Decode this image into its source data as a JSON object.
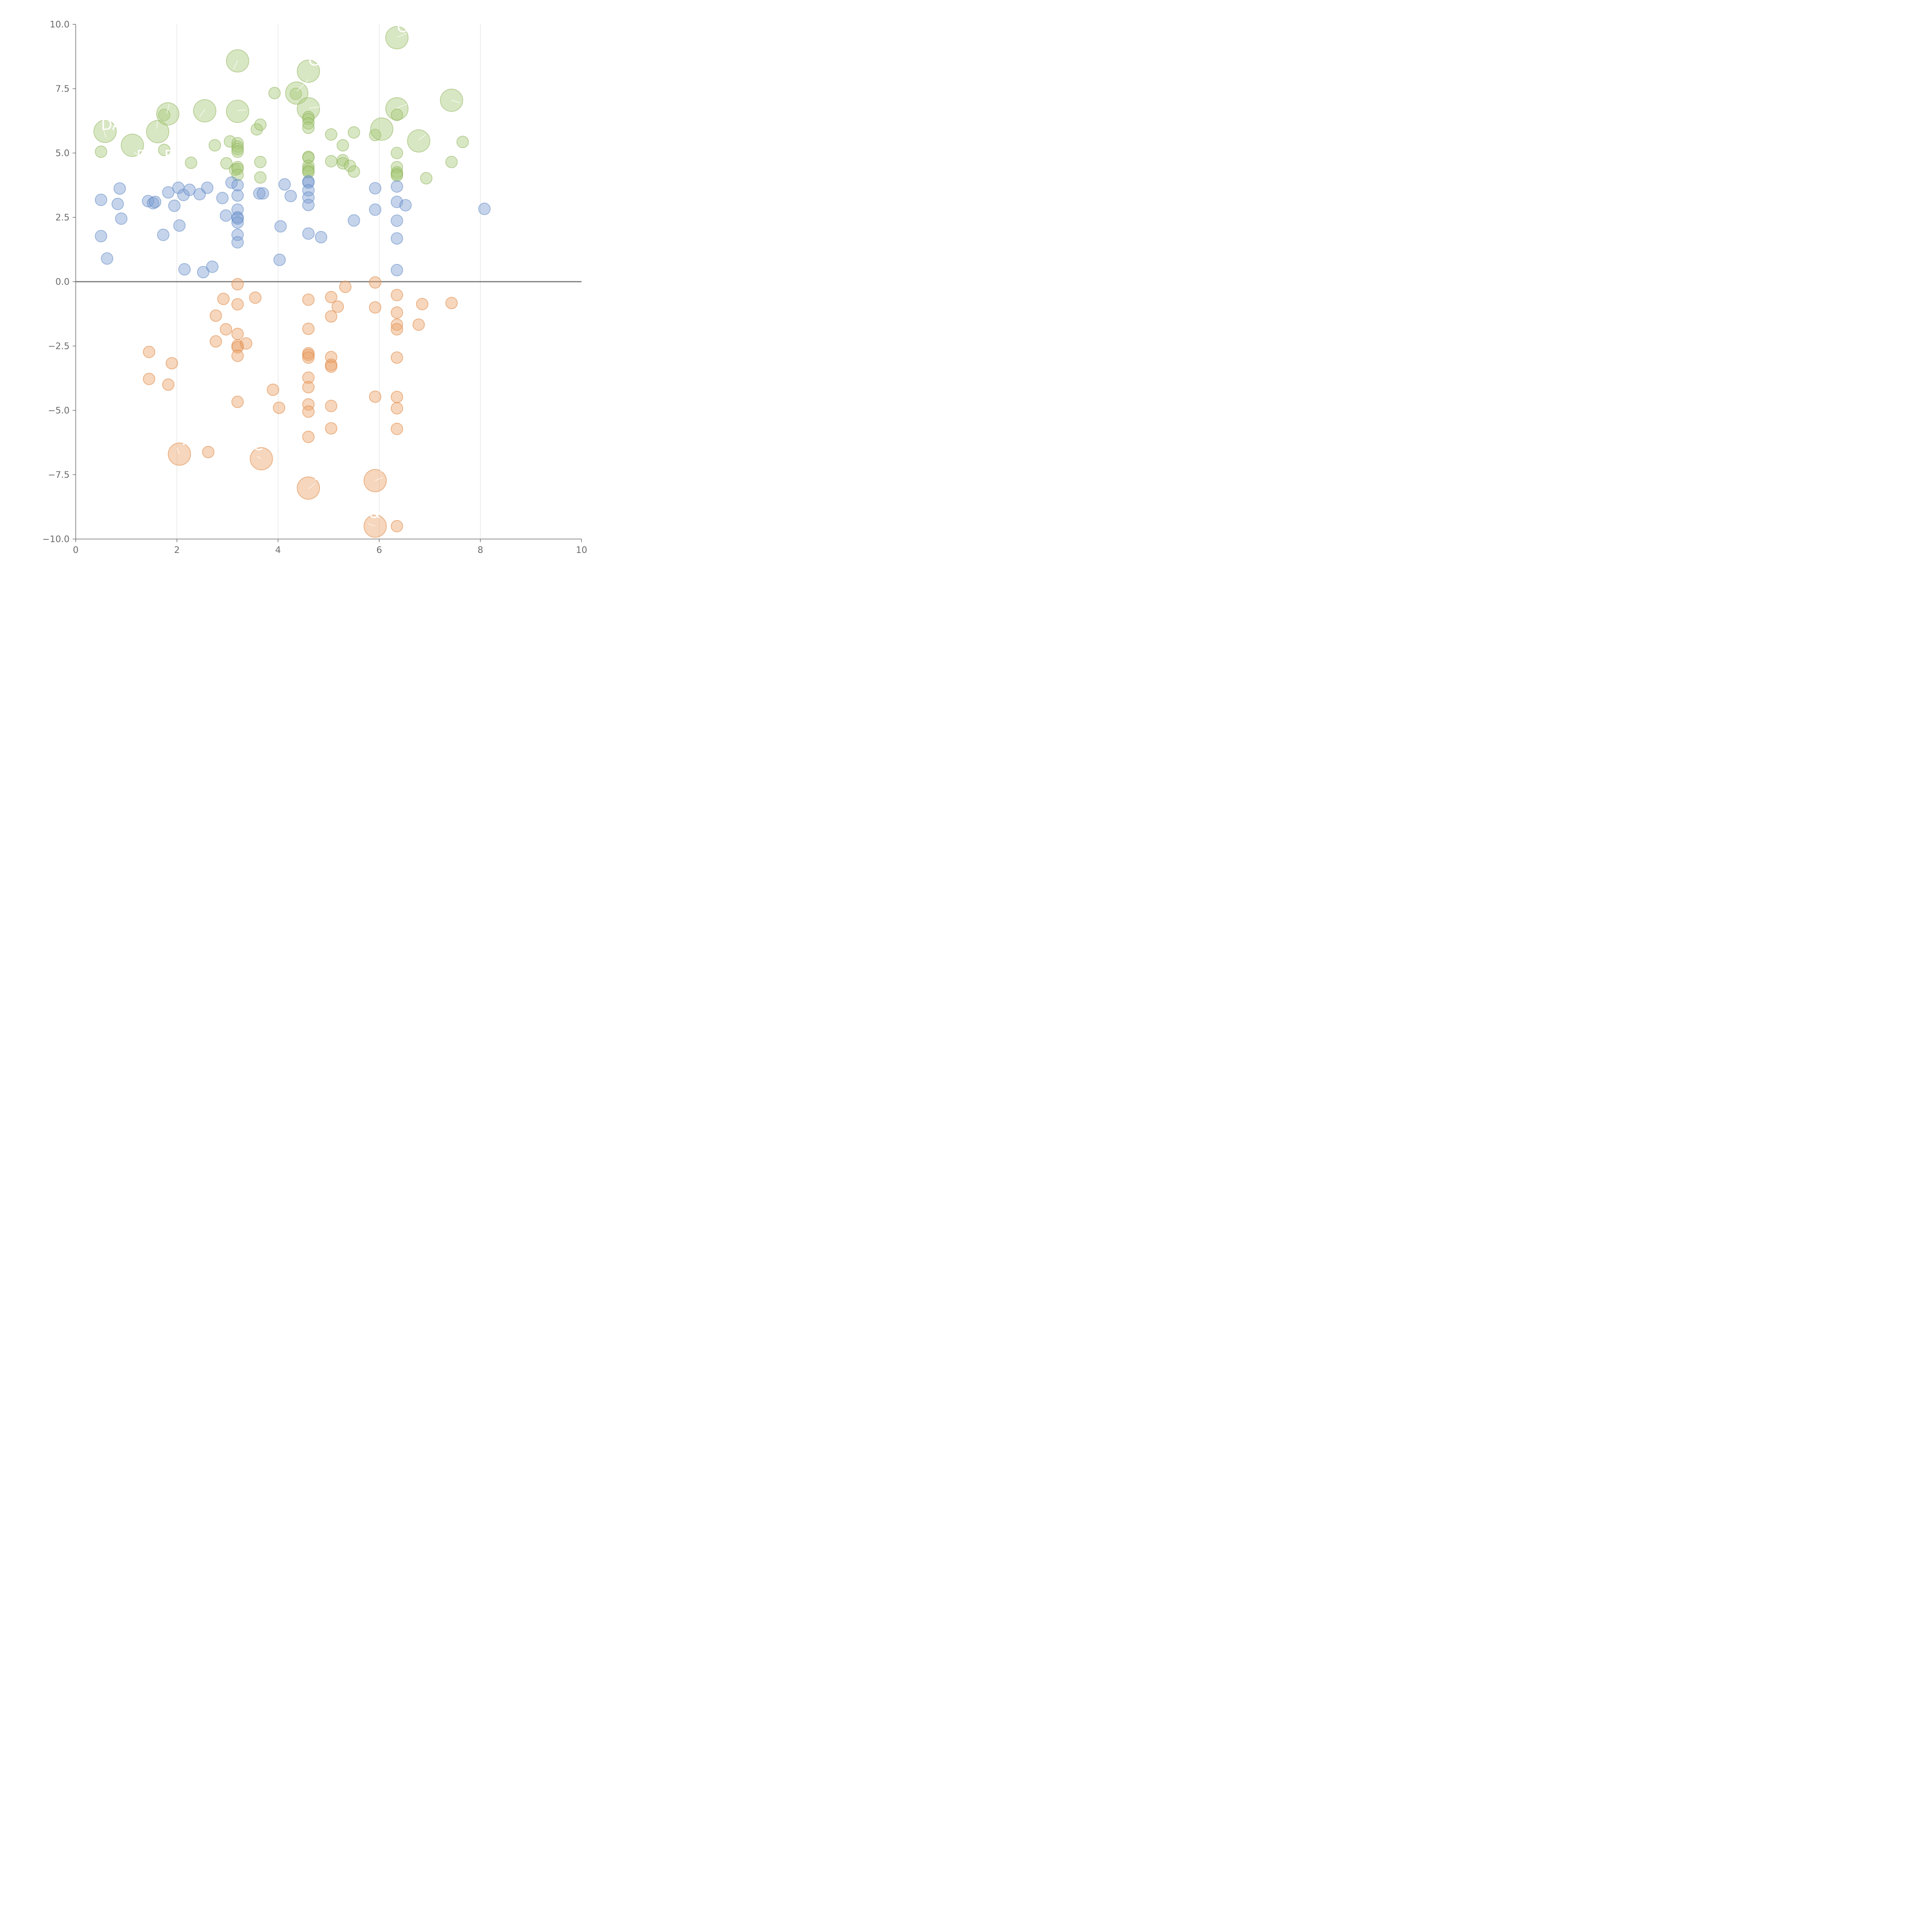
{
  "chart_data": {
    "type": "scatter",
    "title": "",
    "xlabel": "",
    "ylabel": "",
    "xlim": [
      0,
      10
    ],
    "ylim": [
      -10,
      10
    ],
    "grid": "vertical",
    "x_ticks": [
      "0",
      "2",
      "4",
      "6",
      "8",
      "10"
    ],
    "y_ticks": [
      "10.0",
      "7.5",
      "5.0",
      "2.5",
      "0.0",
      "−2.5",
      "−5.0",
      "−7.5",
      "−10.0"
    ],
    "colors": {
      "green": "#a9c97a",
      "green_edge": "#8fb25c",
      "blue": "#7ea0d2",
      "blue_edge": "#5f86c3",
      "orange": "#eca36a",
      "orange_edge": "#dc8540",
      "axis": "#6b6b6b",
      "grid": "#d9d9d9"
    },
    "series": [
      {
        "name": "green",
        "points": [
          [
            0.5,
            5.05,
            1
          ],
          [
            0.58,
            5.84,
            3
          ],
          [
            1.12,
            5.3,
            3
          ],
          [
            1.62,
            5.83,
            3
          ],
          [
            1.75,
            5.12,
            1
          ],
          [
            1.75,
            6.48,
            1
          ],
          [
            1.82,
            6.52,
            3
          ],
          [
            2.28,
            4.62,
            1
          ],
          [
            2.55,
            6.64,
            3
          ],
          [
            2.75,
            5.3,
            1
          ],
          [
            2.98,
            4.6,
            1
          ],
          [
            3.05,
            5.45,
            1
          ],
          [
            3.15,
            4.35,
            1
          ],
          [
            3.2,
            8.58,
            3
          ],
          [
            3.2,
            6.62,
            3
          ],
          [
            3.2,
            5.38,
            1
          ],
          [
            3.2,
            5.25,
            1
          ],
          [
            3.2,
            5.15,
            1
          ],
          [
            3.2,
            5.05,
            1
          ],
          [
            3.2,
            4.45,
            1
          ],
          [
            3.2,
            4.38,
            1
          ],
          [
            3.2,
            4.15,
            1
          ],
          [
            3.58,
            5.92,
            1
          ],
          [
            3.65,
            6.1,
            1
          ],
          [
            3.65,
            4.65,
            1
          ],
          [
            3.65,
            4.05,
            1
          ],
          [
            3.93,
            7.33,
            1
          ],
          [
            4.35,
            7.3,
            1
          ],
          [
            4.37,
            7.33,
            3
          ],
          [
            4.6,
            8.18,
            3
          ],
          [
            4.6,
            6.72,
            3
          ],
          [
            4.6,
            6.4,
            1
          ],
          [
            4.6,
            6.32,
            1
          ],
          [
            4.6,
            6.15,
            1
          ],
          [
            4.6,
            5.98,
            1
          ],
          [
            4.6,
            4.85,
            1
          ],
          [
            4.6,
            4.82,
            1
          ],
          [
            4.6,
            4.5,
            1
          ],
          [
            4.6,
            4.38,
            1
          ],
          [
            4.6,
            4.3,
            1
          ],
          [
            4.6,
            4.25,
            1
          ],
          [
            5.05,
            5.72,
            1
          ],
          [
            5.05,
            4.68,
            1
          ],
          [
            5.28,
            5.3,
            1
          ],
          [
            5.28,
            4.72,
            1
          ],
          [
            5.28,
            4.6,
            1
          ],
          [
            5.42,
            4.5,
            1
          ],
          [
            5.5,
            5.8,
            1
          ],
          [
            5.5,
            4.28,
            1
          ],
          [
            5.92,
            5.7,
            1
          ],
          [
            6.05,
            5.93,
            3
          ],
          [
            6.35,
            9.48,
            3
          ],
          [
            6.35,
            6.72,
            3
          ],
          [
            6.35,
            6.48,
            1
          ],
          [
            6.35,
            5.0,
            1
          ],
          [
            6.35,
            4.45,
            1
          ],
          [
            6.35,
            4.25,
            1
          ],
          [
            6.35,
            4.18,
            1
          ],
          [
            6.35,
            4.12,
            1
          ],
          [
            6.78,
            5.47,
            3
          ],
          [
            6.93,
            4.02,
            1
          ],
          [
            7.43,
            7.05,
            3
          ],
          [
            7.43,
            4.65,
            1
          ],
          [
            7.65,
            5.43,
            1
          ]
        ]
      },
      {
        "name": "blue",
        "points": [
          [
            0.5,
            3.18,
            1
          ],
          [
            0.5,
            1.77,
            1
          ],
          [
            0.62,
            0.9,
            1
          ],
          [
            0.83,
            3.02,
            1
          ],
          [
            0.87,
            3.62,
            1
          ],
          [
            0.9,
            2.45,
            1
          ],
          [
            1.43,
            3.13,
            1
          ],
          [
            1.53,
            3.05,
            1
          ],
          [
            1.57,
            3.1,
            1
          ],
          [
            1.73,
            1.82,
            1
          ],
          [
            1.83,
            3.47,
            1
          ],
          [
            1.95,
            2.95,
            1
          ],
          [
            2.03,
            3.65,
            1
          ],
          [
            2.05,
            2.18,
            1
          ],
          [
            2.13,
            3.37,
            1
          ],
          [
            2.15,
            0.48,
            1
          ],
          [
            2.25,
            3.57,
            1
          ],
          [
            2.45,
            3.4,
            1
          ],
          [
            2.52,
            0.37,
            1
          ],
          [
            2.6,
            3.65,
            1
          ],
          [
            2.7,
            0.58,
            1
          ],
          [
            2.9,
            3.25,
            1
          ],
          [
            2.97,
            2.57,
            1
          ],
          [
            3.08,
            3.85,
            1
          ],
          [
            3.2,
            3.75,
            1
          ],
          [
            3.2,
            3.35,
            1
          ],
          [
            3.2,
            2.8,
            1
          ],
          [
            3.2,
            2.5,
            1
          ],
          [
            3.2,
            2.45,
            1
          ],
          [
            3.2,
            2.3,
            1
          ],
          [
            3.2,
            1.82,
            1
          ],
          [
            3.2,
            1.53,
            1
          ],
          [
            3.63,
            3.43,
            1
          ],
          [
            3.7,
            3.43,
            1
          ],
          [
            4.03,
            0.85,
            1
          ],
          [
            4.05,
            2.15,
            1
          ],
          [
            4.13,
            3.78,
            1
          ],
          [
            4.25,
            3.33,
            1
          ],
          [
            4.6,
            3.9,
            1
          ],
          [
            4.6,
            3.85,
            1
          ],
          [
            4.6,
            3.55,
            1
          ],
          [
            4.6,
            3.27,
            1
          ],
          [
            4.6,
            2.98,
            1
          ],
          [
            4.6,
            1.87,
            1
          ],
          [
            4.85,
            1.73,
            1
          ],
          [
            5.5,
            2.38,
            1
          ],
          [
            5.92,
            3.63,
            1
          ],
          [
            5.92,
            2.8,
            1
          ],
          [
            6.35,
            3.7,
            1
          ],
          [
            6.35,
            3.1,
            1
          ],
          [
            6.35,
            2.37,
            1
          ],
          [
            6.35,
            1.68,
            1
          ],
          [
            6.35,
            0.45,
            1
          ],
          [
            6.52,
            2.97,
            1
          ],
          [
            8.08,
            2.83,
            1
          ]
        ]
      },
      {
        "name": "orange",
        "points": [
          [
            1.45,
            -2.73,
            1
          ],
          [
            1.45,
            -3.78,
            1
          ],
          [
            1.83,
            -4.0,
            1
          ],
          [
            1.9,
            -3.17,
            1
          ],
          [
            2.05,
            -6.7,
            3
          ],
          [
            2.62,
            -6.62,
            1
          ],
          [
            2.77,
            -1.32,
            1
          ],
          [
            2.77,
            -2.32,
            1
          ],
          [
            2.92,
            -0.67,
            1
          ],
          [
            2.97,
            -1.85,
            1
          ],
          [
            3.2,
            -0.1,
            1
          ],
          [
            3.2,
            -0.88,
            1
          ],
          [
            3.2,
            -2.03,
            1
          ],
          [
            3.2,
            -2.48,
            1
          ],
          [
            3.2,
            -2.55,
            1
          ],
          [
            3.2,
            -2.88,
            1
          ],
          [
            3.2,
            -4.67,
            1
          ],
          [
            3.37,
            -2.4,
            1
          ],
          [
            3.55,
            -0.62,
            1
          ],
          [
            3.67,
            -6.88,
            3
          ],
          [
            3.9,
            -4.2,
            1
          ],
          [
            4.02,
            -4.9,
            1
          ],
          [
            4.6,
            -0.7,
            1
          ],
          [
            4.6,
            -1.83,
            1
          ],
          [
            4.6,
            -2.78,
            1
          ],
          [
            4.6,
            -2.85,
            1
          ],
          [
            4.6,
            -2.95,
            1
          ],
          [
            4.6,
            -3.73,
            1
          ],
          [
            4.6,
            -4.1,
            1
          ],
          [
            4.6,
            -4.77,
            1
          ],
          [
            4.6,
            -5.05,
            1
          ],
          [
            4.6,
            -6.03,
            1
          ],
          [
            4.6,
            -8.02,
            3
          ],
          [
            5.05,
            -0.6,
            1
          ],
          [
            5.05,
            -1.35,
            1
          ],
          [
            5.05,
            -2.93,
            1
          ],
          [
            5.05,
            -3.23,
            1
          ],
          [
            5.05,
            -3.3,
            1
          ],
          [
            5.05,
            -4.83,
            1
          ],
          [
            5.05,
            -5.7,
            1
          ],
          [
            5.18,
            -0.97,
            1
          ],
          [
            5.33,
            -0.2,
            1
          ],
          [
            5.92,
            -0.03,
            1
          ],
          [
            5.92,
            -1.0,
            1
          ],
          [
            5.92,
            -4.47,
            1
          ],
          [
            5.92,
            -7.73,
            3
          ],
          [
            5.92,
            -9.5,
            3
          ],
          [
            6.35,
            -0.52,
            1
          ],
          [
            6.35,
            -1.2,
            1
          ],
          [
            6.35,
            -1.67,
            1
          ],
          [
            6.35,
            -1.85,
            1
          ],
          [
            6.35,
            -2.95,
            1
          ],
          [
            6.35,
            -4.48,
            1
          ],
          [
            6.35,
            -4.92,
            1
          ],
          [
            6.35,
            -5.72,
            1
          ],
          [
            6.35,
            -9.5,
            1
          ],
          [
            6.78,
            -1.67,
            1
          ],
          [
            6.85,
            -0.87,
            1
          ],
          [
            7.43,
            -0.83,
            1
          ]
        ]
      }
    ],
    "annotations": [
      {
        "text": "DAR",
        "x": 0.5,
        "y": 5.9
      },
      {
        "text": "E",
        "x": 1.2,
        "y": 4.7
      },
      {
        "text": "E",
        "x": 1.75,
        "y": 4.7
      },
      {
        "text": "GM",
        "x": 4.6,
        "y": 8.4
      },
      {
        "text": "CH",
        "x": 6.35,
        "y": 9.7
      },
      {
        "text": "P",
        "x": 6.05,
        "y": 6.9
      },
      {
        "text": "T",
        "x": 2.05,
        "y": -6.35
      },
      {
        "text": "C",
        "x": 3.5,
        "y": -6.55
      },
      {
        "text": "D",
        "x": 4.7,
        "y": -7.7
      },
      {
        "text": "N",
        "x": 6.0,
        "y": -7.38
      },
      {
        "text": "&",
        "x": 5.8,
        "y": -9.18
      }
    ],
    "leader_lines": [
      [
        0.55,
        5.9,
        0.6,
        5.6
      ],
      [
        1.15,
        5.05,
        1.25,
        4.85
      ],
      [
        1.6,
        5.95,
        1.62,
        6.25
      ],
      [
        1.8,
        6.55,
        1.85,
        6.9
      ],
      [
        2.45,
        6.4,
        2.55,
        6.7
      ],
      [
        3.2,
        8.6,
        3.12,
        8.25
      ],
      [
        3.2,
        6.65,
        3.37,
        6.68
      ],
      [
        4.37,
        7.4,
        4.6,
        7.85
      ],
      [
        4.62,
        6.75,
        4.85,
        6.8
      ],
      [
        6.35,
        6.75,
        6.55,
        6.9
      ],
      [
        6.35,
        9.5,
        6.55,
        9.65
      ],
      [
        6.78,
        5.5,
        6.92,
        5.72
      ],
      [
        7.43,
        7.05,
        7.6,
        6.95
      ],
      [
        2.05,
        -6.7,
        2.0,
        -6.45
      ],
      [
        3.67,
        -6.88,
        3.58,
        -6.78
      ],
      [
        4.6,
        -8.05,
        4.73,
        -7.85
      ],
      [
        5.92,
        -7.73,
        6.08,
        -7.6
      ],
      [
        5.92,
        -9.5,
        5.78,
        -9.4
      ]
    ]
  }
}
